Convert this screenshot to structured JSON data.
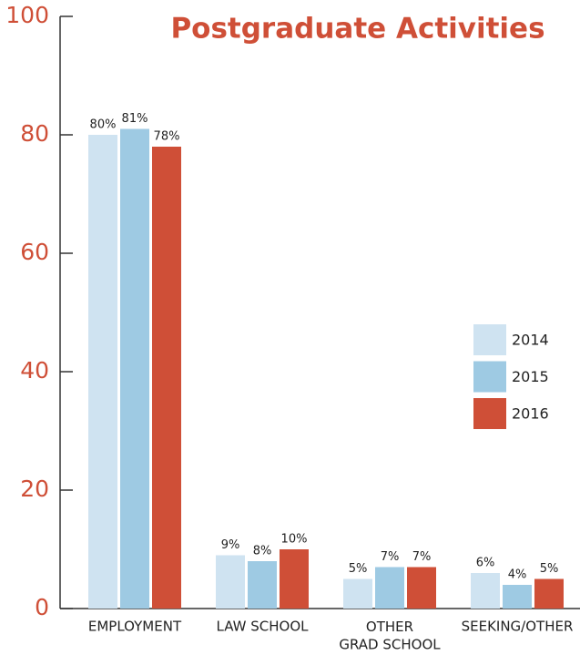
{
  "chart_data": {
    "type": "bar",
    "title": "Postgraduate Activities",
    "categories": [
      "EMPLOYMENT",
      "LAW SCHOOL",
      "OTHER\nGRAD SCHOOL",
      "SEEKING/OTHER"
    ],
    "series": [
      {
        "name": "2014",
        "color": "#cfe3f1",
        "values": [
          80,
          9,
          5,
          6
        ],
        "value_labels": [
          "80%",
          "9%",
          "5%",
          "6%"
        ]
      },
      {
        "name": "2015",
        "color": "#9ecae3",
        "values": [
          81,
          8,
          7,
          4
        ],
        "value_labels": [
          "81%",
          "8%",
          "7%",
          "4%"
        ]
      },
      {
        "name": "2016",
        "color": "#cf4f37",
        "values": [
          78,
          10,
          7,
          5
        ],
        "value_labels": [
          "78%",
          "10%",
          "7%",
          "5%"
        ]
      }
    ],
    "ylim": [
      0,
      100
    ],
    "yticks": [
      0,
      20,
      40,
      60,
      80,
      100
    ],
    "legend": "right"
  }
}
